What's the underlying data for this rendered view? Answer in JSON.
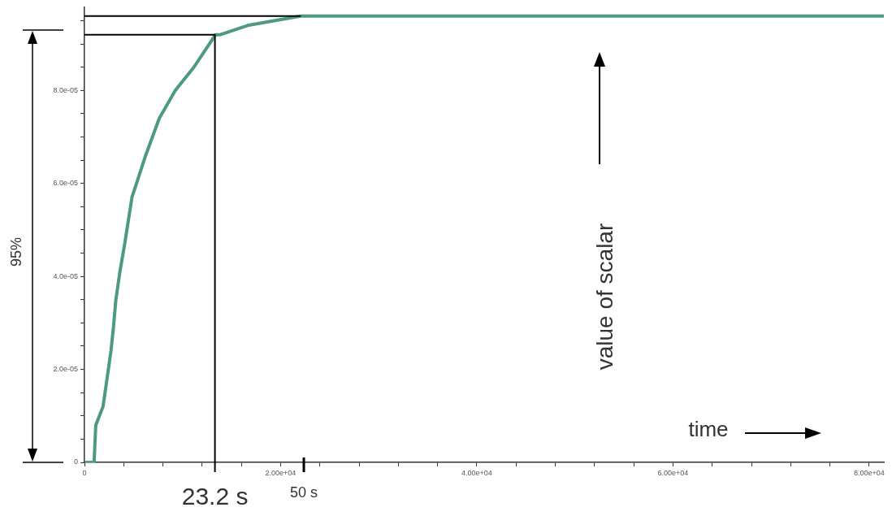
{
  "chart_data": {
    "type": "line",
    "x": [
      0,
      980,
      1150,
      1890,
      2300,
      2700,
      2950,
      3200,
      3610,
      4100,
      4840,
      6230,
      7620,
      9260,
      11150,
      13360,
      13850,
      16640,
      19340,
      22050,
      24840,
      27540,
      32700,
      81500
    ],
    "series": [
      {
        "color": "#4e9a7f",
        "values": [
          0,
          0,
          8e-06,
          1.2e-05,
          1.8e-05,
          2.4e-05,
          2.9e-05,
          3.5e-05,
          4.1e-05,
          4.7e-05,
          5.7e-05,
          6.6e-05,
          7.4e-05,
          8e-05,
          8.5e-05,
          9.2e-05,
          9.2e-05,
          9.4e-05,
          9.5e-05,
          9.6e-05,
          9.6e-05,
          9.6e-05,
          9.6e-05,
          9.6e-05
        ]
      }
    ],
    "xlim": [
      0,
      81500
    ],
    "xticks": [
      {
        "value": 0,
        "label": "0"
      },
      {
        "value": 4000,
        "label": null
      },
      {
        "value": 8000,
        "label": null
      },
      {
        "value": 12000,
        "label": null
      },
      {
        "value": 16000,
        "label": null
      },
      {
        "value": 20000,
        "label": "2.00e+04"
      },
      {
        "value": 24000,
        "label": null
      },
      {
        "value": 28000,
        "label": null
      },
      {
        "value": 32000,
        "label": null
      },
      {
        "value": 36000,
        "label": null
      },
      {
        "value": 40000,
        "label": "4.00e+04"
      },
      {
        "value": 44000,
        "label": null
      },
      {
        "value": 48000,
        "label": null
      },
      {
        "value": 52000,
        "label": null
      },
      {
        "value": 56000,
        "label": null
      },
      {
        "value": 60000,
        "label": "6.00e+04"
      },
      {
        "value": 64000,
        "label": null
      },
      {
        "value": 68000,
        "label": null
      },
      {
        "value": 72000,
        "label": null
      },
      {
        "value": 76000,
        "label": null
      },
      {
        "value": 80000,
        "label": "8.00e+04"
      }
    ],
    "ylim": [
      0,
      9.8e-05
    ],
    "yticks": [
      {
        "value": 0,
        "label": "0"
      },
      {
        "value": 5e-06,
        "label": null
      },
      {
        "value": 1e-05,
        "label": null
      },
      {
        "value": 1.5e-05,
        "label": null
      },
      {
        "value": 2e-05,
        "label": "2.0e-05"
      },
      {
        "value": 2.5e-05,
        "label": null
      },
      {
        "value": 3e-05,
        "label": null
      },
      {
        "value": 3.5e-05,
        "label": null
      },
      {
        "value": 4e-05,
        "label": "4.0e-05"
      },
      {
        "value": 4.5e-05,
        "label": null
      },
      {
        "value": 5e-05,
        "label": null
      },
      {
        "value": 5.5e-05,
        "label": null
      },
      {
        "value": 6e-05,
        "label": "6.0e-05"
      },
      {
        "value": 6.5e-05,
        "label": null
      },
      {
        "value": 7e-05,
        "label": null
      },
      {
        "value": 7.5e-05,
        "label": null
      },
      {
        "value": 8e-05,
        "label": "8.0e-05"
      },
      {
        "value": 8.5e-05,
        "label": null
      },
      {
        "value": 9e-05,
        "label": null
      },
      {
        "value": 9.5e-05,
        "label": null
      }
    ],
    "ref_lines": [
      {
        "axis": "x",
        "value": 13300,
        "label": "23.2 s",
        "color": "#000000"
      },
      {
        "axis": "y",
        "value": 9.2e-05,
        "color": "#000000"
      },
      {
        "axis": "y",
        "value": 9.6e-05,
        "color": "#000000"
      }
    ],
    "annotations": [
      "95%",
      "value of scalar",
      "time",
      "50 s"
    ],
    "marker": "none",
    "grid": false,
    "legend": false
  }
}
